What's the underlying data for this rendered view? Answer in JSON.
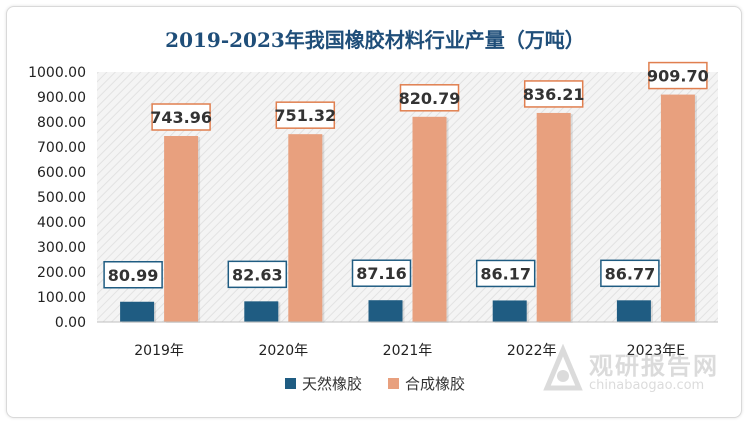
{
  "chart_data": {
    "type": "bar",
    "title": "2019-2023年我国橡胶材料行业产量（万吨）",
    "categories": [
      "2019年",
      "2020年",
      "2021年",
      "2022年",
      "2023年E"
    ],
    "series": [
      {
        "name": "天然橡胶",
        "values": [
          80.99,
          82.63,
          87.16,
          86.17,
          86.77
        ],
        "color": "#1f5c82"
      },
      {
        "name": "合成橡胶",
        "values": [
          743.96,
          751.32,
          820.79,
          836.21,
          909.7
        ],
        "color": "#e8a07e"
      }
    ],
    "ylim": [
      0,
      1000
    ],
    "yticks": [
      "0.00",
      "100.00",
      "200.00",
      "300.00",
      "400.00",
      "500.00",
      "600.00",
      "700.00",
      "800.00",
      "900.00",
      "1000.00"
    ],
    "label_border_colors": [
      "#1f5c82",
      "#e07f4f"
    ],
    "plot_background": "hatched",
    "legend_position": "bottom"
  },
  "watermark": {
    "name": "观研报告网",
    "url": "chinabaogao.com"
  }
}
